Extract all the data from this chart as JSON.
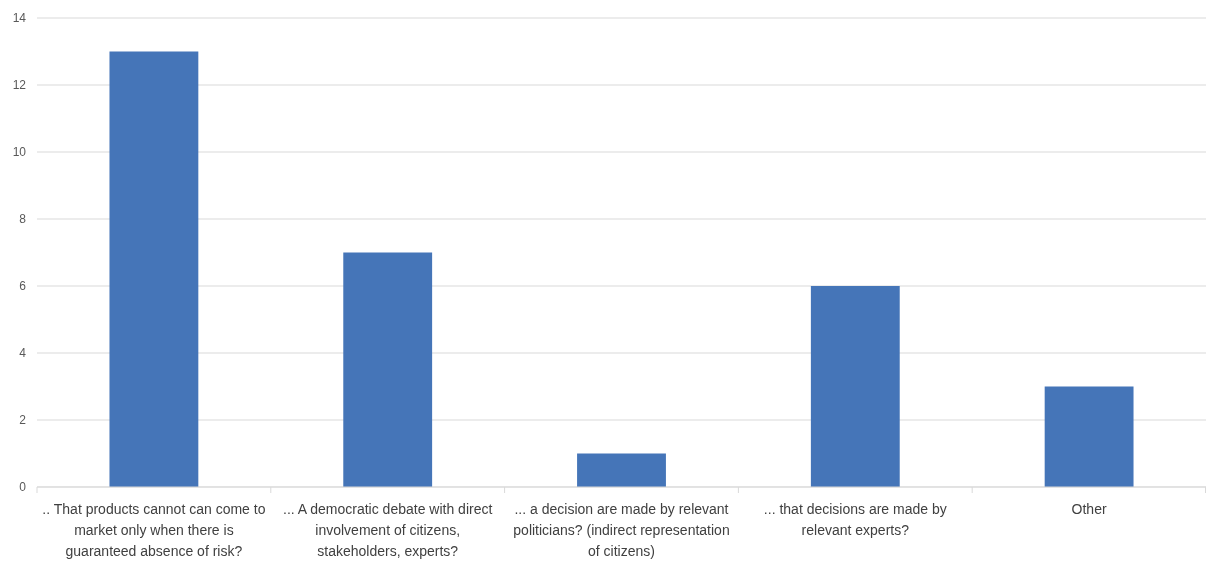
{
  "chart_data": {
    "type": "bar",
    "categories": [
      ".. That products cannot can come to market only when there is guaranteed absence of risk?",
      "... A democratic debate with direct involvement of citizens, stakeholders, experts?",
      "... a decision are made by relevant politicians? (indirect representation of citizens)",
      "... that decisions are made by relevant experts?",
      "Other"
    ],
    "values": [
      13,
      7,
      1,
      6,
      3
    ],
    "color": "#4575b8",
    "ylim": [
      0,
      14
    ],
    "yticks": [
      0,
      2,
      4,
      6,
      8,
      10,
      12,
      14
    ],
    "grid": "y"
  }
}
